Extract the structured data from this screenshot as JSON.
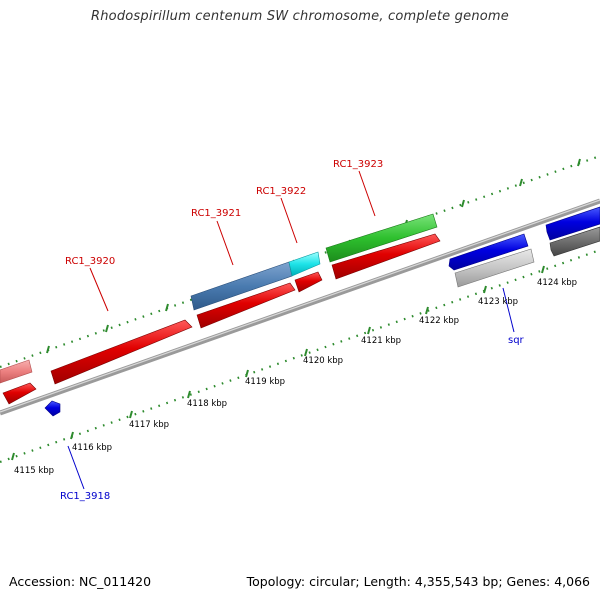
{
  "title": "Rhodospirillum centenum SW chromosome, complete genome",
  "footer": {
    "accession": "Accession: NC_011420",
    "summary": "Topology: circular; Length: 4,355,543 bp; Genes: 4,066"
  },
  "kbp_ticks": [
    "4115 kbp",
    "4116 kbp",
    "4117 kbp",
    "4118 kbp",
    "4119 kbp",
    "4120 kbp",
    "4121 kbp",
    "4122 kbp",
    "4123 kbp",
    "4124 kbp"
  ],
  "gene_labels": {
    "rc1_3920": "RC1_3920",
    "rc1_3921": "RC1_3921",
    "rc1_3922": "RC1_3922",
    "rc1_3923": "RC1_3923",
    "rc1_3918": "RC1_3918",
    "sqr": "sqr"
  },
  "colors": {
    "forward_gene": "#e00000",
    "reverse_gene": "#0000dd",
    "label_forward": "#cc0000",
    "label_reverse": "#0000cc",
    "tick_green": "#2e8b2e",
    "backbone": "#888888",
    "gene_3921_cog": "#4a7bb0",
    "gene_3922_cog": "#1ee3e8",
    "gene_3923_cog": "#2ec02e",
    "gene_pink": "#ec8080",
    "gene_lightgray": "#c6c6c6",
    "gene_darkgray": "#6e6e6e"
  }
}
